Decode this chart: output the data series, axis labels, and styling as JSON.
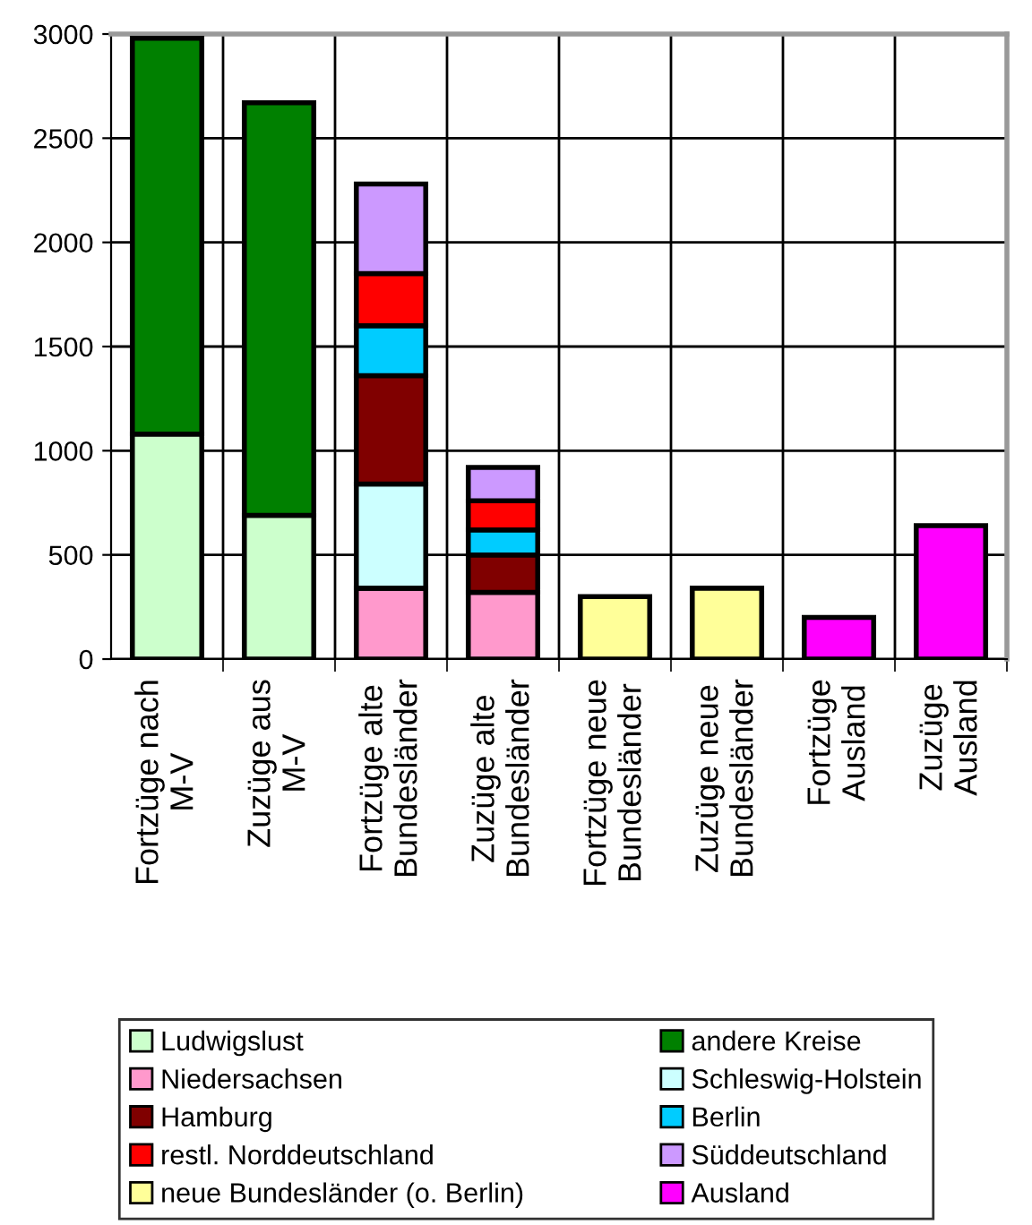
{
  "chart_data": {
    "type": "bar",
    "stacked": true,
    "categories": [
      "Fortzüge nach\nM-V",
      "Zuzüge aus\nM-V",
      "Fortzüge alte\nBundesländer",
      "Zuzüge alte\nBundesländer",
      "Fortzüge neue\nBundesländer",
      "Zuzüge neue\nBundesländer",
      "Fortzüge\nAusland",
      "Zuzüge\nAusland"
    ],
    "series": [
      {
        "name": "Ludwigslust",
        "color": "#ccffcc",
        "values": [
          1080,
          690,
          null,
          null,
          null,
          null,
          null,
          null
        ]
      },
      {
        "name": "andere Kreise",
        "color": "#008000",
        "values": [
          1900,
          1980,
          null,
          null,
          null,
          null,
          null,
          null
        ]
      },
      {
        "name": "Niedersachsen",
        "color": "#ff99cc",
        "values": [
          null,
          null,
          340,
          320,
          null,
          null,
          null,
          null
        ]
      },
      {
        "name": "Schleswig-Holstein",
        "color": "#ccffff",
        "values": [
          null,
          null,
          500,
          null,
          null,
          null,
          null,
          null
        ]
      },
      {
        "name": "Hamburg",
        "color": "#800000",
        "values": [
          null,
          null,
          520,
          180,
          null,
          null,
          null,
          null
        ]
      },
      {
        "name": "Berlin",
        "color": "#00ccff",
        "values": [
          null,
          null,
          240,
          120,
          null,
          null,
          null,
          null
        ]
      },
      {
        "name": "restl. Norddeutschland",
        "color": "#ff0000",
        "values": [
          null,
          null,
          250,
          140,
          null,
          null,
          null,
          null
        ]
      },
      {
        "name": "Süddeutschland",
        "color": "#cc99ff",
        "values": [
          null,
          null,
          430,
          160,
          null,
          null,
          null,
          null
        ]
      },
      {
        "name": "neue Bundesländer (o. Berlin)",
        "color": "#ffff99",
        "values": [
          null,
          null,
          null,
          null,
          300,
          340,
          null,
          null
        ]
      },
      {
        "name": "Ausland",
        "color": "#ff00ff",
        "values": [
          null,
          null,
          null,
          null,
          null,
          null,
          200,
          640
        ]
      }
    ],
    "ylim": [
      0,
      3000
    ],
    "yticks": [
      0,
      500,
      1000,
      1500,
      2000,
      2500,
      3000
    ],
    "grid": true,
    "legend": "bottom"
  }
}
